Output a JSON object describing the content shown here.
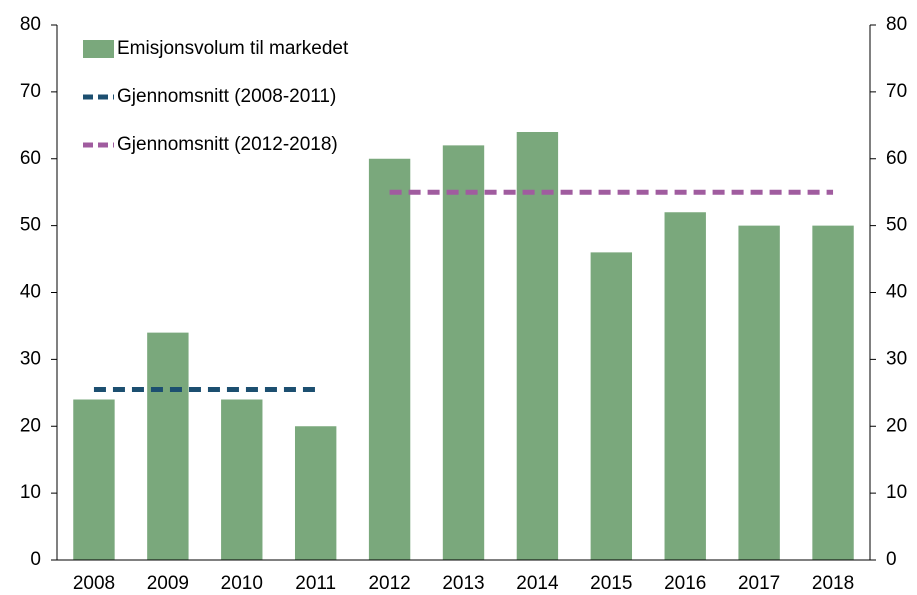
{
  "chart_data": {
    "type": "bar",
    "categories": [
      "2008",
      "2009",
      "2010",
      "2011",
      "2012",
      "2013",
      "2014",
      "2015",
      "2016",
      "2017",
      "2018"
    ],
    "series": [
      {
        "name": "Emisjonsvolum til markedet",
        "type": "bar",
        "color": "#7aa87c",
        "values": [
          24,
          34,
          24,
          20,
          60,
          62,
          64,
          46,
          52,
          50,
          50
        ]
      },
      {
        "name": "Gjennomsnitt (2008-2011)",
        "type": "line",
        "dashed": true,
        "color": "#1c4f70",
        "values": [
          25.5,
          25.5,
          25.5,
          25.5,
          null,
          null,
          null,
          null,
          null,
          null,
          null
        ]
      },
      {
        "name": "Gjennomsnitt (2012-2018)",
        "type": "line",
        "dashed": true,
        "color": "#a05c9f",
        "values": [
          null,
          null,
          null,
          null,
          55,
          55,
          55,
          55,
          55,
          55,
          55
        ]
      }
    ],
    "ylim": [
      0,
      80
    ],
    "yticks": [
      0,
      10,
      20,
      30,
      40,
      50,
      60,
      70,
      80
    ],
    "y2lim": [
      0,
      80
    ],
    "y2ticks": [
      0,
      10,
      20,
      30,
      40,
      50,
      60,
      70,
      80
    ],
    "legend": "upper left",
    "grid": false
  }
}
